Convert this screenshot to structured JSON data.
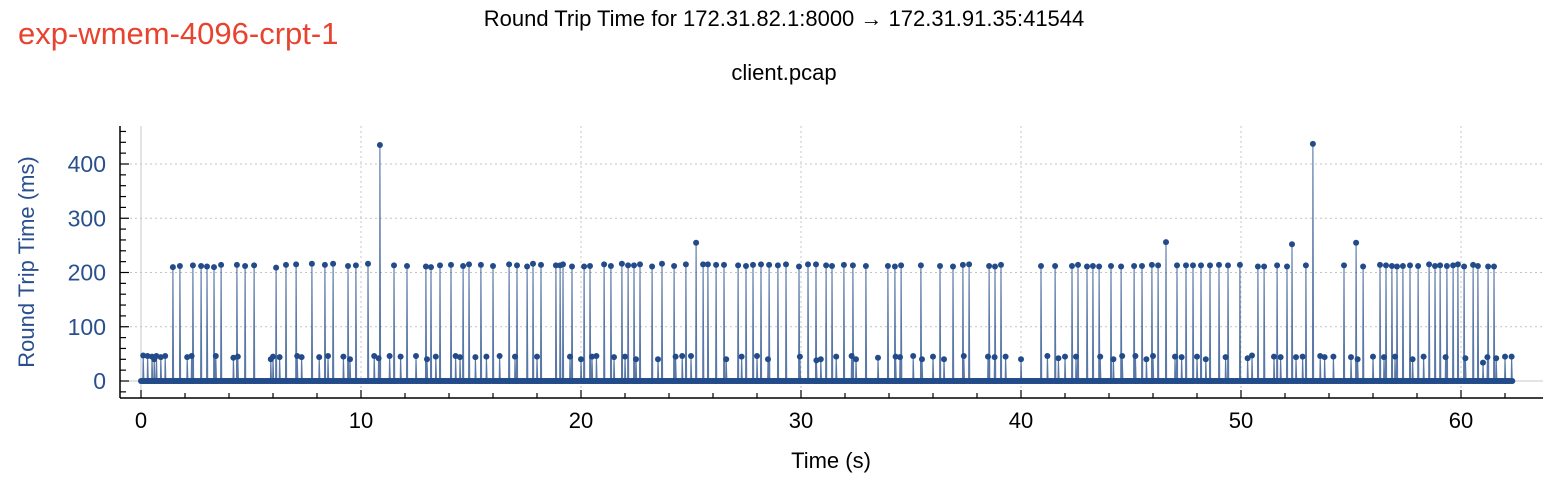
{
  "experiment_label": "exp-wmem-4096-crpt-1",
  "chart_data": {
    "type": "line",
    "title": "Round Trip Time for 172.31.82.1:8000 → 172.31.91.35:41544",
    "subtitle": "client.pcap",
    "xlabel": "Time (s)",
    "ylabel": "Round Trip Time (ms)",
    "xlim": [
      -0.9,
      63.2
    ],
    "ylim": [
      -25,
      470
    ],
    "xticks": [
      0,
      10,
      20,
      30,
      40,
      50,
      60
    ],
    "yticks": [
      0,
      100,
      200,
      300,
      400
    ],
    "grid": true,
    "markers": true,
    "series_color": "#234b8a",
    "axis_label_color": "#2a4f8f",
    "exp_label_color": "#e8432e",
    "baseline_range": [
      0,
      62.3
    ],
    "series": [
      {
        "points": [
          [
            0.1,
            47
          ],
          [
            0.3,
            46
          ],
          [
            0.5,
            45
          ],
          [
            0.6,
            40
          ],
          [
            0.7,
            46
          ],
          [
            0.9,
            44
          ],
          [
            1.1,
            46
          ],
          [
            1.45,
            210
          ],
          [
            1.77,
            212
          ],
          [
            2.1,
            44
          ],
          [
            2.3,
            46
          ],
          [
            2.36,
            213
          ],
          [
            2.73,
            212
          ],
          [
            3.0,
            211
          ],
          [
            3.32,
            210
          ],
          [
            3.4,
            46
          ],
          [
            3.64,
            214
          ],
          [
            4.2,
            43
          ],
          [
            4.36,
            214
          ],
          [
            4.4,
            45
          ],
          [
            4.73,
            212
          ],
          [
            5.14,
            213
          ],
          [
            5.9,
            40
          ],
          [
            6.0,
            45
          ],
          [
            6.14,
            209
          ],
          [
            6.3,
            44
          ],
          [
            6.59,
            214
          ],
          [
            7.05,
            215
          ],
          [
            7.1,
            46
          ],
          [
            7.3,
            44
          ],
          [
            7.77,
            216
          ],
          [
            8.1,
            44
          ],
          [
            8.36,
            214
          ],
          [
            8.5,
            46
          ],
          [
            8.73,
            216
          ],
          [
            9.2,
            45
          ],
          [
            9.41,
            212
          ],
          [
            9.5,
            40
          ],
          [
            9.77,
            213
          ],
          [
            10.32,
            216
          ],
          [
            10.6,
            46
          ],
          [
            10.8,
            42
          ],
          [
            10.86,
            435
          ],
          [
            11.3,
            46
          ],
          [
            11.5,
            213
          ],
          [
            11.8,
            45
          ],
          [
            12.09,
            212
          ],
          [
            12.5,
            46
          ],
          [
            12.95,
            211
          ],
          [
            13.0,
            40
          ],
          [
            13.18,
            210
          ],
          [
            13.4,
            45
          ],
          [
            13.59,
            213
          ],
          [
            14.09,
            214
          ],
          [
            14.3,
            46
          ],
          [
            14.5,
            44
          ],
          [
            14.64,
            212
          ],
          [
            14.91,
            215
          ],
          [
            15.2,
            44
          ],
          [
            15.45,
            214
          ],
          [
            15.7,
            45
          ],
          [
            16.0,
            212
          ],
          [
            16.3,
            46
          ],
          [
            16.73,
            215
          ],
          [
            17.0,
            45
          ],
          [
            17.09,
            213
          ],
          [
            17.55,
            211
          ],
          [
            17.82,
            216
          ],
          [
            18.0,
            45
          ],
          [
            18.18,
            214
          ],
          [
            18.86,
            213
          ],
          [
            19.05,
            213
          ],
          [
            19.18,
            215
          ],
          [
            19.5,
            45
          ],
          [
            19.59,
            211
          ],
          [
            20.0,
            40
          ],
          [
            20.14,
            211
          ],
          [
            20.41,
            212
          ],
          [
            20.5,
            45
          ],
          [
            20.7,
            46
          ],
          [
            21.05,
            215
          ],
          [
            21.36,
            212
          ],
          [
            21.5,
            44
          ],
          [
            21.86,
            216
          ],
          [
            22.0,
            45
          ],
          [
            22.14,
            213
          ],
          [
            22.41,
            213
          ],
          [
            22.5,
            40
          ],
          [
            22.68,
            215
          ],
          [
            23.23,
            211
          ],
          [
            23.5,
            40
          ],
          [
            23.68,
            216
          ],
          [
            24.23,
            212
          ],
          [
            24.3,
            45
          ],
          [
            24.6,
            46
          ],
          [
            24.77,
            215
          ],
          [
            25.0,
            46
          ],
          [
            25.23,
            255
          ],
          [
            25.55,
            215
          ],
          [
            25.77,
            215
          ],
          [
            26.14,
            214
          ],
          [
            26.5,
            214
          ],
          [
            26.6,
            40
          ],
          [
            27.14,
            213
          ],
          [
            27.3,
            45
          ],
          [
            27.5,
            212
          ],
          [
            27.82,
            214
          ],
          [
            28.0,
            46
          ],
          [
            28.18,
            215
          ],
          [
            28.5,
            40
          ],
          [
            28.55,
            214
          ],
          [
            28.95,
            213
          ],
          [
            29.32,
            215
          ],
          [
            29.91,
            211
          ],
          [
            29.95,
            45
          ],
          [
            30.32,
            215
          ],
          [
            30.68,
            215
          ],
          [
            30.7,
            38
          ],
          [
            30.9,
            40
          ],
          [
            31.14,
            213
          ],
          [
            31.41,
            212
          ],
          [
            31.6,
            45
          ],
          [
            31.95,
            214
          ],
          [
            32.3,
            46
          ],
          [
            32.36,
            213
          ],
          [
            32.5,
            40
          ],
          [
            32.95,
            212
          ],
          [
            33.5,
            43
          ],
          [
            33.95,
            212
          ],
          [
            34.27,
            211
          ],
          [
            34.3,
            45
          ],
          [
            34.5,
            44
          ],
          [
            34.55,
            213
          ],
          [
            35.1,
            46
          ],
          [
            35.45,
            213
          ],
          [
            35.5,
            40
          ],
          [
            36.0,
            45
          ],
          [
            36.32,
            212
          ],
          [
            36.5,
            40
          ],
          [
            36.91,
            211
          ],
          [
            37.36,
            214
          ],
          [
            37.4,
            46
          ],
          [
            37.64,
            215
          ],
          [
            38.5,
            45
          ],
          [
            38.55,
            212
          ],
          [
            38.8,
            44
          ],
          [
            38.82,
            211
          ],
          [
            39.09,
            214
          ],
          [
            39.3,
            45
          ],
          [
            40.0,
            40
          ],
          [
            40.91,
            212
          ],
          [
            41.2,
            46
          ],
          [
            41.55,
            212
          ],
          [
            41.7,
            42
          ],
          [
            42.0,
            45
          ],
          [
            42.32,
            212
          ],
          [
            42.5,
            45
          ],
          [
            42.59,
            214
          ],
          [
            43.0,
            211
          ],
          [
            43.27,
            212
          ],
          [
            43.55,
            211
          ],
          [
            43.6,
            45
          ],
          [
            44.09,
            212
          ],
          [
            44.2,
            40
          ],
          [
            44.55,
            211
          ],
          [
            44.6,
            46
          ],
          [
            45.14,
            212
          ],
          [
            45.2,
            46
          ],
          [
            45.5,
            212
          ],
          [
            45.7,
            40
          ],
          [
            45.95,
            214
          ],
          [
            46.0,
            46
          ],
          [
            46.23,
            213
          ],
          [
            46.59,
            256
          ],
          [
            47.0,
            45
          ],
          [
            47.09,
            213
          ],
          [
            47.3,
            44
          ],
          [
            47.5,
            213
          ],
          [
            47.82,
            213
          ],
          [
            48.0,
            45
          ],
          [
            48.18,
            213
          ],
          [
            48.4,
            40
          ],
          [
            48.59,
            213
          ],
          [
            49.0,
            214
          ],
          [
            49.3,
            44
          ],
          [
            49.41,
            213
          ],
          [
            49.95,
            214
          ],
          [
            50.3,
            42
          ],
          [
            50.5,
            47
          ],
          [
            50.77,
            211
          ],
          [
            51.05,
            211
          ],
          [
            51.5,
            45
          ],
          [
            51.64,
            213
          ],
          [
            51.8,
            44
          ],
          [
            52.09,
            211
          ],
          [
            52.32,
            252
          ],
          [
            52.5,
            44
          ],
          [
            52.8,
            45
          ],
          [
            52.95,
            213
          ],
          [
            53.27,
            437
          ],
          [
            53.6,
            46
          ],
          [
            53.8,
            44
          ],
          [
            54.2,
            45
          ],
          [
            54.68,
            213
          ],
          [
            55.0,
            44
          ],
          [
            55.23,
            255
          ],
          [
            55.3,
            40
          ],
          [
            55.55,
            211
          ],
          [
            56.0,
            45
          ],
          [
            56.32,
            214
          ],
          [
            56.5,
            44
          ],
          [
            56.59,
            213
          ],
          [
            56.86,
            212
          ],
          [
            57.0,
            45
          ],
          [
            57.09,
            211
          ],
          [
            57.36,
            212
          ],
          [
            57.68,
            213
          ],
          [
            57.8,
            40
          ],
          [
            58.05,
            212
          ],
          [
            58.3,
            45
          ],
          [
            58.55,
            215
          ],
          [
            58.82,
            212
          ],
          [
            59.05,
            213
          ],
          [
            59.3,
            44
          ],
          [
            59.36,
            212
          ],
          [
            59.64,
            213
          ],
          [
            59.86,
            215
          ],
          [
            60.14,
            211
          ],
          [
            60.2,
            42
          ],
          [
            60.55,
            214
          ],
          [
            60.77,
            212
          ],
          [
            61.0,
            34
          ],
          [
            61.23,
            211
          ],
          [
            61.2,
            44
          ],
          [
            61.5,
            211
          ],
          [
            61.6,
            42
          ],
          [
            62.0,
            45
          ],
          [
            62.3,
            45
          ]
        ]
      }
    ]
  }
}
